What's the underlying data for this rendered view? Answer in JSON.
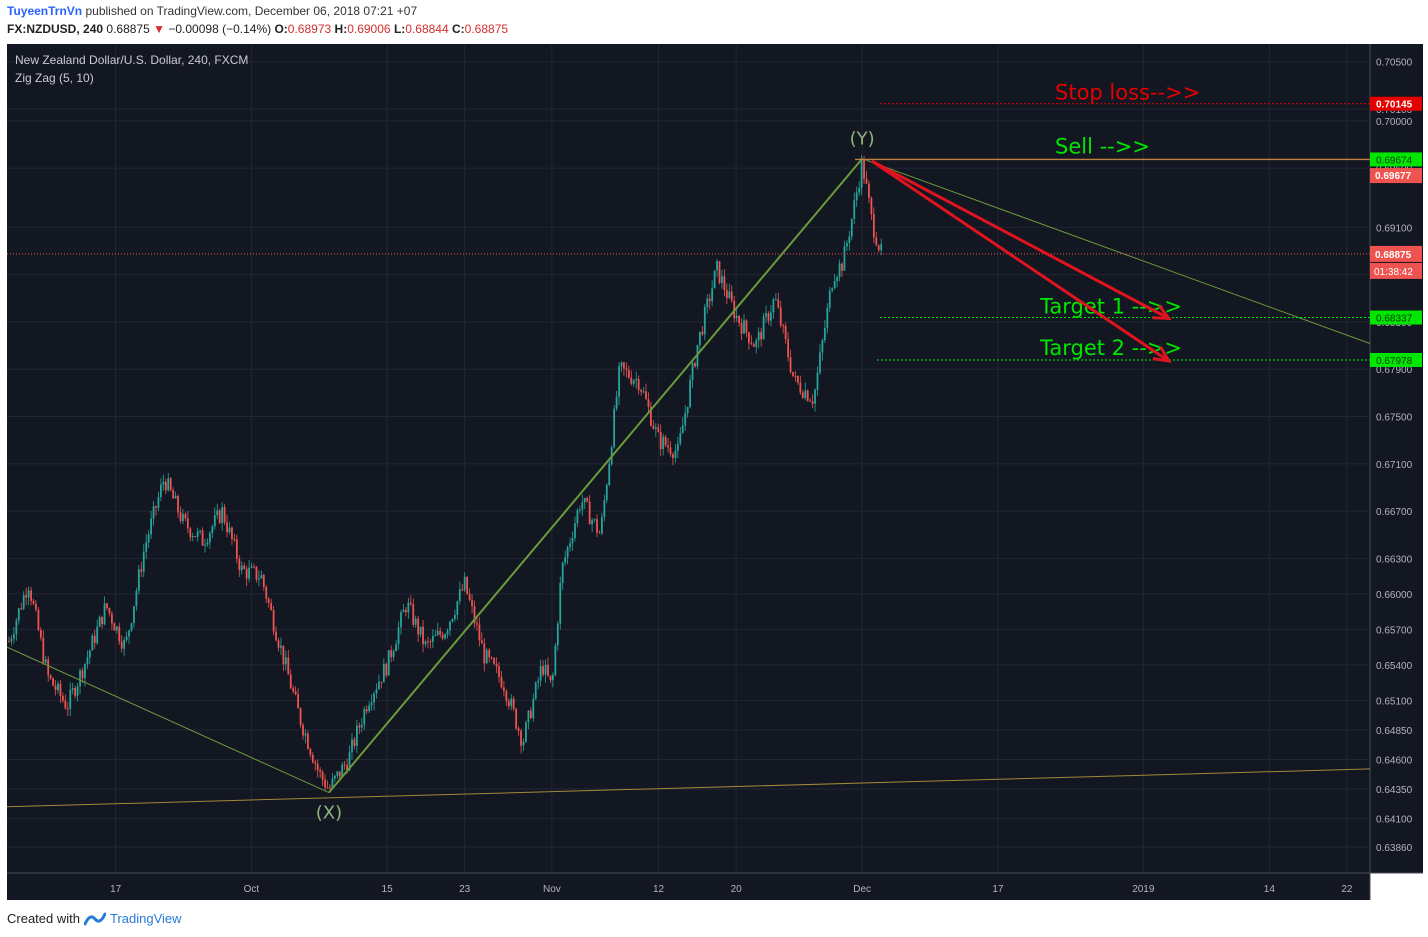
{
  "header": {
    "author": "TuyeenTrnVn",
    "published_text": "published on TradingView.com, December 06, 2018 07:21 +07",
    "symbol": "FX:NZDUSD",
    "interval": "240",
    "last": "0.68875",
    "change_arrow": "▼",
    "change": "−0.00098 (−0.14%)",
    "o_label": "O:",
    "o_value": "0.68973",
    "h_label": "H:",
    "h_value": "0.69006",
    "l_label": "L:",
    "l_value": "0.68844",
    "c_label": "C:",
    "c_value": "0.68875"
  },
  "legend": {
    "title": "New Zealand Dollar/U.S. Dollar, 240, FXCM",
    "indicator": "Zig Zag (5, 10)"
  },
  "footer": {
    "created_with": "Created with",
    "brand": "TradingView"
  },
  "colors": {
    "background": "#131722",
    "grid": "#232734",
    "up": "#26a69a",
    "down": "#ef5350",
    "zigzag": "#6a9a3a",
    "support": "#a08a3a",
    "annotation_green": "#00e600",
    "annotation_red": "#e50000",
    "arrow_red": "#e0141e"
  },
  "chart_data": {
    "type": "candlestick",
    "title": "New Zealand Dollar/U.S. Dollar, 240, FXCM",
    "ylim": [
      0.6364,
      0.7065
    ],
    "y_ticks": [
      "0.70500",
      "0.70100",
      "0.70000",
      "0.69600",
      "0.69100",
      "0.68700",
      "0.68300",
      "0.67900",
      "0.67500",
      "0.67100",
      "0.66700",
      "0.66300",
      "0.66000",
      "0.65700",
      "0.65400",
      "0.65100",
      "0.64850",
      "0.64600",
      "0.64350",
      "0.64100",
      "0.63860"
    ],
    "x_ticks": [
      "17",
      "Oct",
      "15",
      "23",
      "Nov",
      "12",
      "20",
      "Dec",
      "17",
      "2019",
      "14",
      "22"
    ],
    "price_line": {
      "value": 0.68875,
      "label": "0.68875",
      "countdown": "01:38:42"
    },
    "levels": [
      {
        "name": "stop-loss",
        "text": "Stop loss-->>",
        "value": 0.70145,
        "label": "0.70145",
        "color": "#e50000"
      },
      {
        "name": "sell",
        "text": "Sell -->>",
        "value": 0.69674,
        "label": "0.69674",
        "color": "#00e600"
      },
      {
        "name": "target-1",
        "text": "Target 1 -->>",
        "value": 0.68337,
        "label": "0.68337",
        "color": "#00e600"
      },
      {
        "name": "target-2",
        "text": "Target 2 -->>",
        "value": 0.67978,
        "label": "0.67978",
        "color": "#00e600"
      }
    ],
    "high_label": {
      "value": 0.69677,
      "label": "0.69677"
    },
    "wave_labels": [
      {
        "text": "(X)",
        "date": "2018-10-09",
        "value": 0.6415
      },
      {
        "text": "(Y)",
        "date": "2018-12-03",
        "value": 0.6985
      }
    ],
    "zigzag": [
      {
        "date": "2018-09-06",
        "value": 0.6555
      },
      {
        "date": "2018-10-09",
        "value": 0.6432
      },
      {
        "date": "2018-12-03",
        "value": 0.6968
      },
      {
        "date": "2019-01-31",
        "value": 0.6792
      }
    ],
    "support_line": [
      {
        "date": "2018-09-06",
        "value": 0.642
      },
      {
        "date": "2019-01-31",
        "value": 0.6452
      }
    ],
    "arrows": [
      {
        "from": {
          "date": "2018-12-04",
          "value": 0.6966
        },
        "to": {
          "date": "2019-01-03",
          "value": 0.6833
        }
      },
      {
        "from": {
          "date": "2018-12-04",
          "value": 0.6966
        },
        "to": {
          "date": "2019-01-03",
          "value": 0.6797
        }
      }
    ],
    "path": [
      [
        "2018-09-06",
        0.656
      ],
      [
        "2018-09-08",
        0.661
      ],
      [
        "2018-09-10",
        0.653
      ],
      [
        "2018-09-12",
        0.6505
      ],
      [
        "2018-09-14",
        0.6545
      ],
      [
        "2018-09-16",
        0.659
      ],
      [
        "2018-09-18",
        0.6555
      ],
      [
        "2018-09-20",
        0.664
      ],
      [
        "2018-09-22",
        0.6698
      ],
      [
        "2018-09-24",
        0.666
      ],
      [
        "2018-09-26",
        0.6645
      ],
      [
        "2018-09-28",
        0.667
      ],
      [
        "2018-09-30",
        0.662
      ],
      [
        "2018-10-02",
        0.6615
      ],
      [
        "2018-10-04",
        0.6555
      ],
      [
        "2018-10-06",
        0.6495
      ],
      [
        "2018-10-08",
        0.6448
      ],
      [
        "2018-10-09",
        0.6435
      ],
      [
        "2018-10-11",
        0.646
      ],
      [
        "2018-10-13",
        0.651
      ],
      [
        "2018-10-15",
        0.654
      ],
      [
        "2018-10-17",
        0.6592
      ],
      [
        "2018-10-19",
        0.6555
      ],
      [
        "2018-10-21",
        0.657
      ],
      [
        "2018-10-23",
        0.6608
      ],
      [
        "2018-10-25",
        0.6548
      ],
      [
        "2018-10-27",
        0.6525
      ],
      [
        "2018-10-29",
        0.6475
      ],
      [
        "2018-10-31",
        0.654
      ],
      [
        "2018-11-01",
        0.652
      ],
      [
        "2018-11-02",
        0.662
      ],
      [
        "2018-11-04",
        0.668
      ],
      [
        "2018-11-06",
        0.665
      ],
      [
        "2018-11-08",
        0.679
      ],
      [
        "2018-11-10",
        0.678
      ],
      [
        "2018-11-12",
        0.673
      ],
      [
        "2018-11-14",
        0.672
      ],
      [
        "2018-11-16",
        0.681
      ],
      [
        "2018-11-18",
        0.6875
      ],
      [
        "2018-11-20",
        0.6835
      ],
      [
        "2018-11-22",
        0.681
      ],
      [
        "2018-11-24",
        0.685
      ],
      [
        "2018-11-26",
        0.678
      ],
      [
        "2018-11-28",
        0.6765
      ],
      [
        "2018-11-30",
        0.687
      ],
      [
        "2018-12-01",
        0.688
      ],
      [
        "2018-12-02",
        0.692
      ],
      [
        "2018-12-03",
        0.6965
      ],
      [
        "2018-12-04",
        0.6915
      ],
      [
        "2018-12-05",
        0.6887
      ]
    ]
  }
}
